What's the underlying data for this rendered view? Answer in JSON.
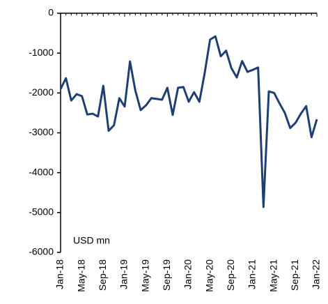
{
  "chart_data": {
    "type": "line",
    "annotation": "USD mn",
    "categories": [
      "Jan-18",
      null,
      null,
      null,
      "May-18",
      null,
      null,
      null,
      "Sep-18",
      null,
      null,
      null,
      "Jan-19",
      null,
      null,
      null,
      "May-19",
      null,
      null,
      null,
      "Sep-19",
      null,
      null,
      null,
      "Jan-20",
      null,
      null,
      null,
      "May-20",
      null,
      null,
      null,
      "Sep-20",
      null,
      null,
      null,
      "Jan-21",
      null,
      null,
      null,
      "May-21",
      null,
      null,
      null,
      "Sep-21",
      null,
      null,
      null,
      "Jan-22"
    ],
    "series": [
      {
        "color": "#1f3f73",
        "values": [
          -1900,
          -1630,
          -2190,
          -2030,
          -2080,
          -2540,
          -2520,
          -2590,
          -1820,
          -2950,
          -2810,
          -2130,
          -2340,
          -1210,
          -1940,
          -2430,
          -2310,
          -2130,
          -2150,
          -2170,
          -1870,
          -2550,
          -1870,
          -1850,
          -2220,
          -1980,
          -2220,
          -1490,
          -660,
          -580,
          -1080,
          -940,
          -1380,
          -1610,
          -1200,
          -1470,
          -1420,
          -1360,
          -4860,
          -1960,
          -2000,
          -2260,
          -2500,
          -2880,
          -2750,
          -2520,
          -2330,
          -3110,
          -2660
        ]
      }
    ],
    "ylim": [
      -6000,
      0
    ],
    "yticks": [
      0,
      -1000,
      -2000,
      -3000,
      -4000,
      -5000,
      -6000
    ],
    "grid": false
  }
}
